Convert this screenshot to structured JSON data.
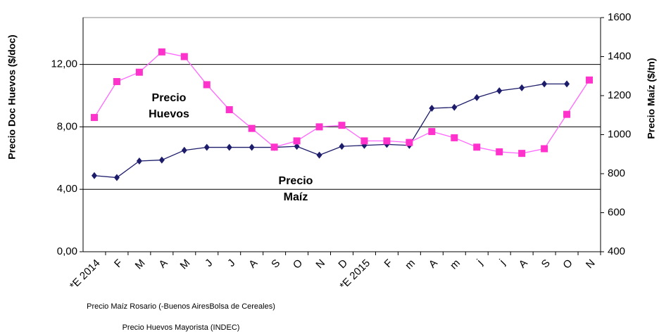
{
  "chart_data": {
    "type": "line",
    "y_label": "Precio Doc Huevos ($/doc)",
    "y2_label": "Precio Maíz ($/tn)",
    "annotations": [
      {
        "lines": [
          "Precio",
          "Huevos"
        ]
      },
      {
        "lines": [
          "Precio",
          "Maíz"
        ]
      }
    ],
    "categories": [
      "*E 2014",
      "F",
      "M",
      "A",
      "M",
      "J",
      "J",
      "A",
      "S",
      "O",
      "N",
      "D",
      "*E 2015",
      "F",
      "m",
      "A",
      "m",
      "j",
      "j",
      "A",
      "S",
      "O",
      "N"
    ],
    "series": [
      {
        "name": "Precio Maíz Rosario (-Buenos AiresBolsa de Cereales)",
        "color": "#1c1c6b",
        "marker": "diamond",
        "axis": "y2",
        "values": [
          790,
          780,
          865,
          870,
          920,
          935,
          935,
          935,
          935,
          940,
          895,
          940,
          945,
          950,
          945,
          1135,
          1140,
          1190,
          1225,
          1240,
          1260,
          1260,
          null
        ]
      },
      {
        "name": "Precio Huevos  Mayorista (INDEC)",
        "color": "#ff33cc",
        "marker": "square",
        "values": [
          8.6,
          10.9,
          11.5,
          12.8,
          12.5,
          10.7,
          9.1,
          7.9,
          6.7,
          7.1,
          8.0,
          8.1,
          7.1,
          7.1,
          7.0,
          7.7,
          7.3,
          6.7,
          6.4,
          6.3,
          6.6,
          8.8,
          11.0
        ]
      }
    ],
    "ylim": [
      0,
      15
    ],
    "yticks": [
      {
        "value": 0,
        "label": "0,00"
      },
      {
        "value": 4,
        "label": "4,00"
      },
      {
        "value": 8,
        "label": "8,00"
      },
      {
        "value": 12,
        "label": "12,00"
      }
    ],
    "y2lim": [
      400,
      1600
    ],
    "y2ticks": [
      400,
      600,
      800,
      1000,
      1200,
      1400,
      1600
    ],
    "grid": true
  }
}
